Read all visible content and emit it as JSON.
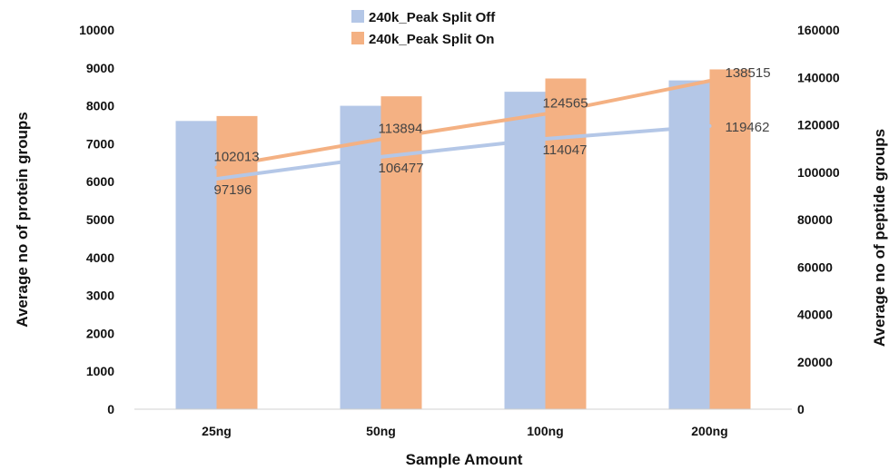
{
  "chart_data": {
    "type": "bar",
    "categories": [
      "25ng",
      "50ng",
      "100ng",
      "200ng"
    ],
    "xlabel": "Sample Amount",
    "ylabel": "Average no of protein groups",
    "y2label": "Average no of peptide groups",
    "ylim": [
      0,
      10000
    ],
    "y2lim": [
      0,
      160000
    ],
    "yticks": [
      "0",
      "1000",
      "2000",
      "3000",
      "4000",
      "5000",
      "6000",
      "7000",
      "8000",
      "9000",
      "10000"
    ],
    "y2ticks": [
      "0",
      "20000",
      "40000",
      "60000",
      "80000",
      "100000",
      "120000",
      "140000",
      "160000"
    ],
    "grid": false,
    "legend": "top-center",
    "series": [
      {
        "name": "240k_Peak Split Off",
        "color": "#b4c7e7",
        "values": [
          7600,
          8000,
          8370,
          8670
        ],
        "line_values": [
          97196,
          106477,
          114047,
          119462
        ],
        "line_labels": [
          "97196",
          "106477",
          "114047",
          "119462"
        ]
      },
      {
        "name": "240k_Peak Split On",
        "color": "#f4b183",
        "values": [
          7730,
          8250,
          8720,
          8960
        ],
        "line_values": [
          102013,
          113894,
          124565,
          138515
        ],
        "line_labels": [
          "102013",
          "113894",
          "124565",
          "138515"
        ]
      }
    ]
  }
}
